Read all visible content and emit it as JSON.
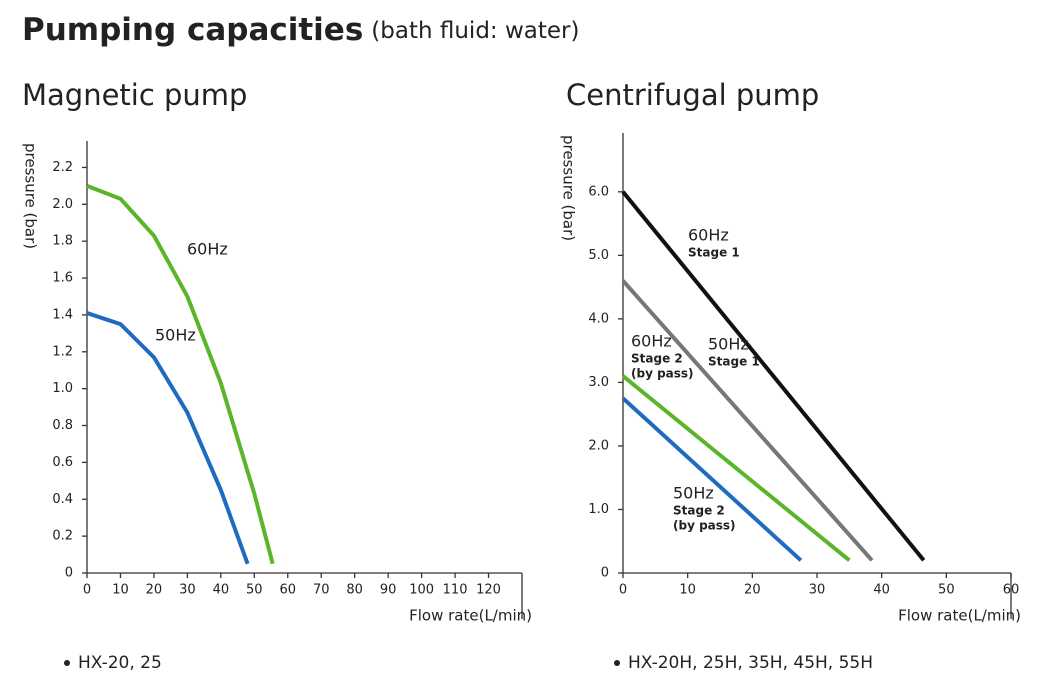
{
  "title": "Pumping capacities",
  "subtitle": "(bath fluid: water)",
  "chart_data": [
    {
      "type": "line",
      "title": "Magnetic pump",
      "x_label": "Flow rate(L/min)",
      "y_label": "pressure (bar)",
      "xlim": [
        0,
        130
      ],
      "xticks": [
        0,
        10,
        20,
        30,
        40,
        50,
        60,
        70,
        80,
        90,
        100,
        110,
        120
      ],
      "ylim": [
        0,
        2.3
      ],
      "yticks": [
        0,
        0.2,
        0.4,
        0.6,
        0.8,
        {
          "value": 1,
          "label": "1.0"
        },
        1.2,
        1.4,
        1.6,
        1.8,
        {
          "value": 2,
          "label": "2.0"
        },
        2.2
      ],
      "series": [
        {
          "name": "60Hz",
          "color": "#5bb52a",
          "x": [
            0,
            10,
            20,
            30,
            40,
            50,
            55.5
          ],
          "values": [
            2.1,
            2.03,
            1.83,
            1.5,
            1.03,
            0.43,
            0.05
          ]
        },
        {
          "name": "50Hz",
          "color": "#1f6bbf",
          "x": [
            0,
            10,
            20,
            30,
            40,
            45,
            48
          ],
          "values": [
            1.41,
            1.35,
            1.17,
            0.87,
            0.45,
            0.2,
            0.05
          ]
        }
      ],
      "note": "HX-20, 25"
    },
    {
      "type": "line",
      "title": "Centrifugal pump",
      "x_label": "Flow rate(L/min)",
      "y_label": "pressure (bar)",
      "xlim": [
        0,
        60
      ],
      "xticks": [
        0,
        10,
        20,
        30,
        40,
        50,
        60
      ],
      "ylim": [
        0,
        6.8
      ],
      "yticks": [
        0,
        {
          "value": 1,
          "label": "1.0"
        },
        {
          "value": 2,
          "label": "2.0"
        },
        {
          "value": 3,
          "label": "3.0"
        },
        {
          "value": 4,
          "label": "4.0"
        },
        {
          "value": 5,
          "label": "5.0"
        },
        {
          "value": 6,
          "label": "6.0"
        }
      ],
      "series": [
        {
          "name": "60Hz",
          "detail": [
            "Stage 1"
          ],
          "color": "#111111",
          "x": [
            0,
            46.5
          ],
          "values": [
            6.0,
            0.2
          ]
        },
        {
          "name": "50Hz",
          "detail": [
            "Stage 1"
          ],
          "color": "#777777",
          "x": [
            0,
            38.5
          ],
          "values": [
            4.6,
            0.2
          ]
        },
        {
          "name": "60Hz",
          "detail": [
            "Stage 2",
            "(by pass)"
          ],
          "color": "#5bb52a",
          "x": [
            0,
            35
          ],
          "values": [
            3.1,
            0.2
          ]
        },
        {
          "name": "50Hz",
          "detail": [
            "Stage 2",
            "(by pass)"
          ],
          "color": "#1f6bbf",
          "x": [
            0,
            27.5
          ],
          "values": [
            2.75,
            0.2
          ]
        }
      ],
      "note": "HX-20H, 25H, 35H, 45H, 55H"
    }
  ]
}
